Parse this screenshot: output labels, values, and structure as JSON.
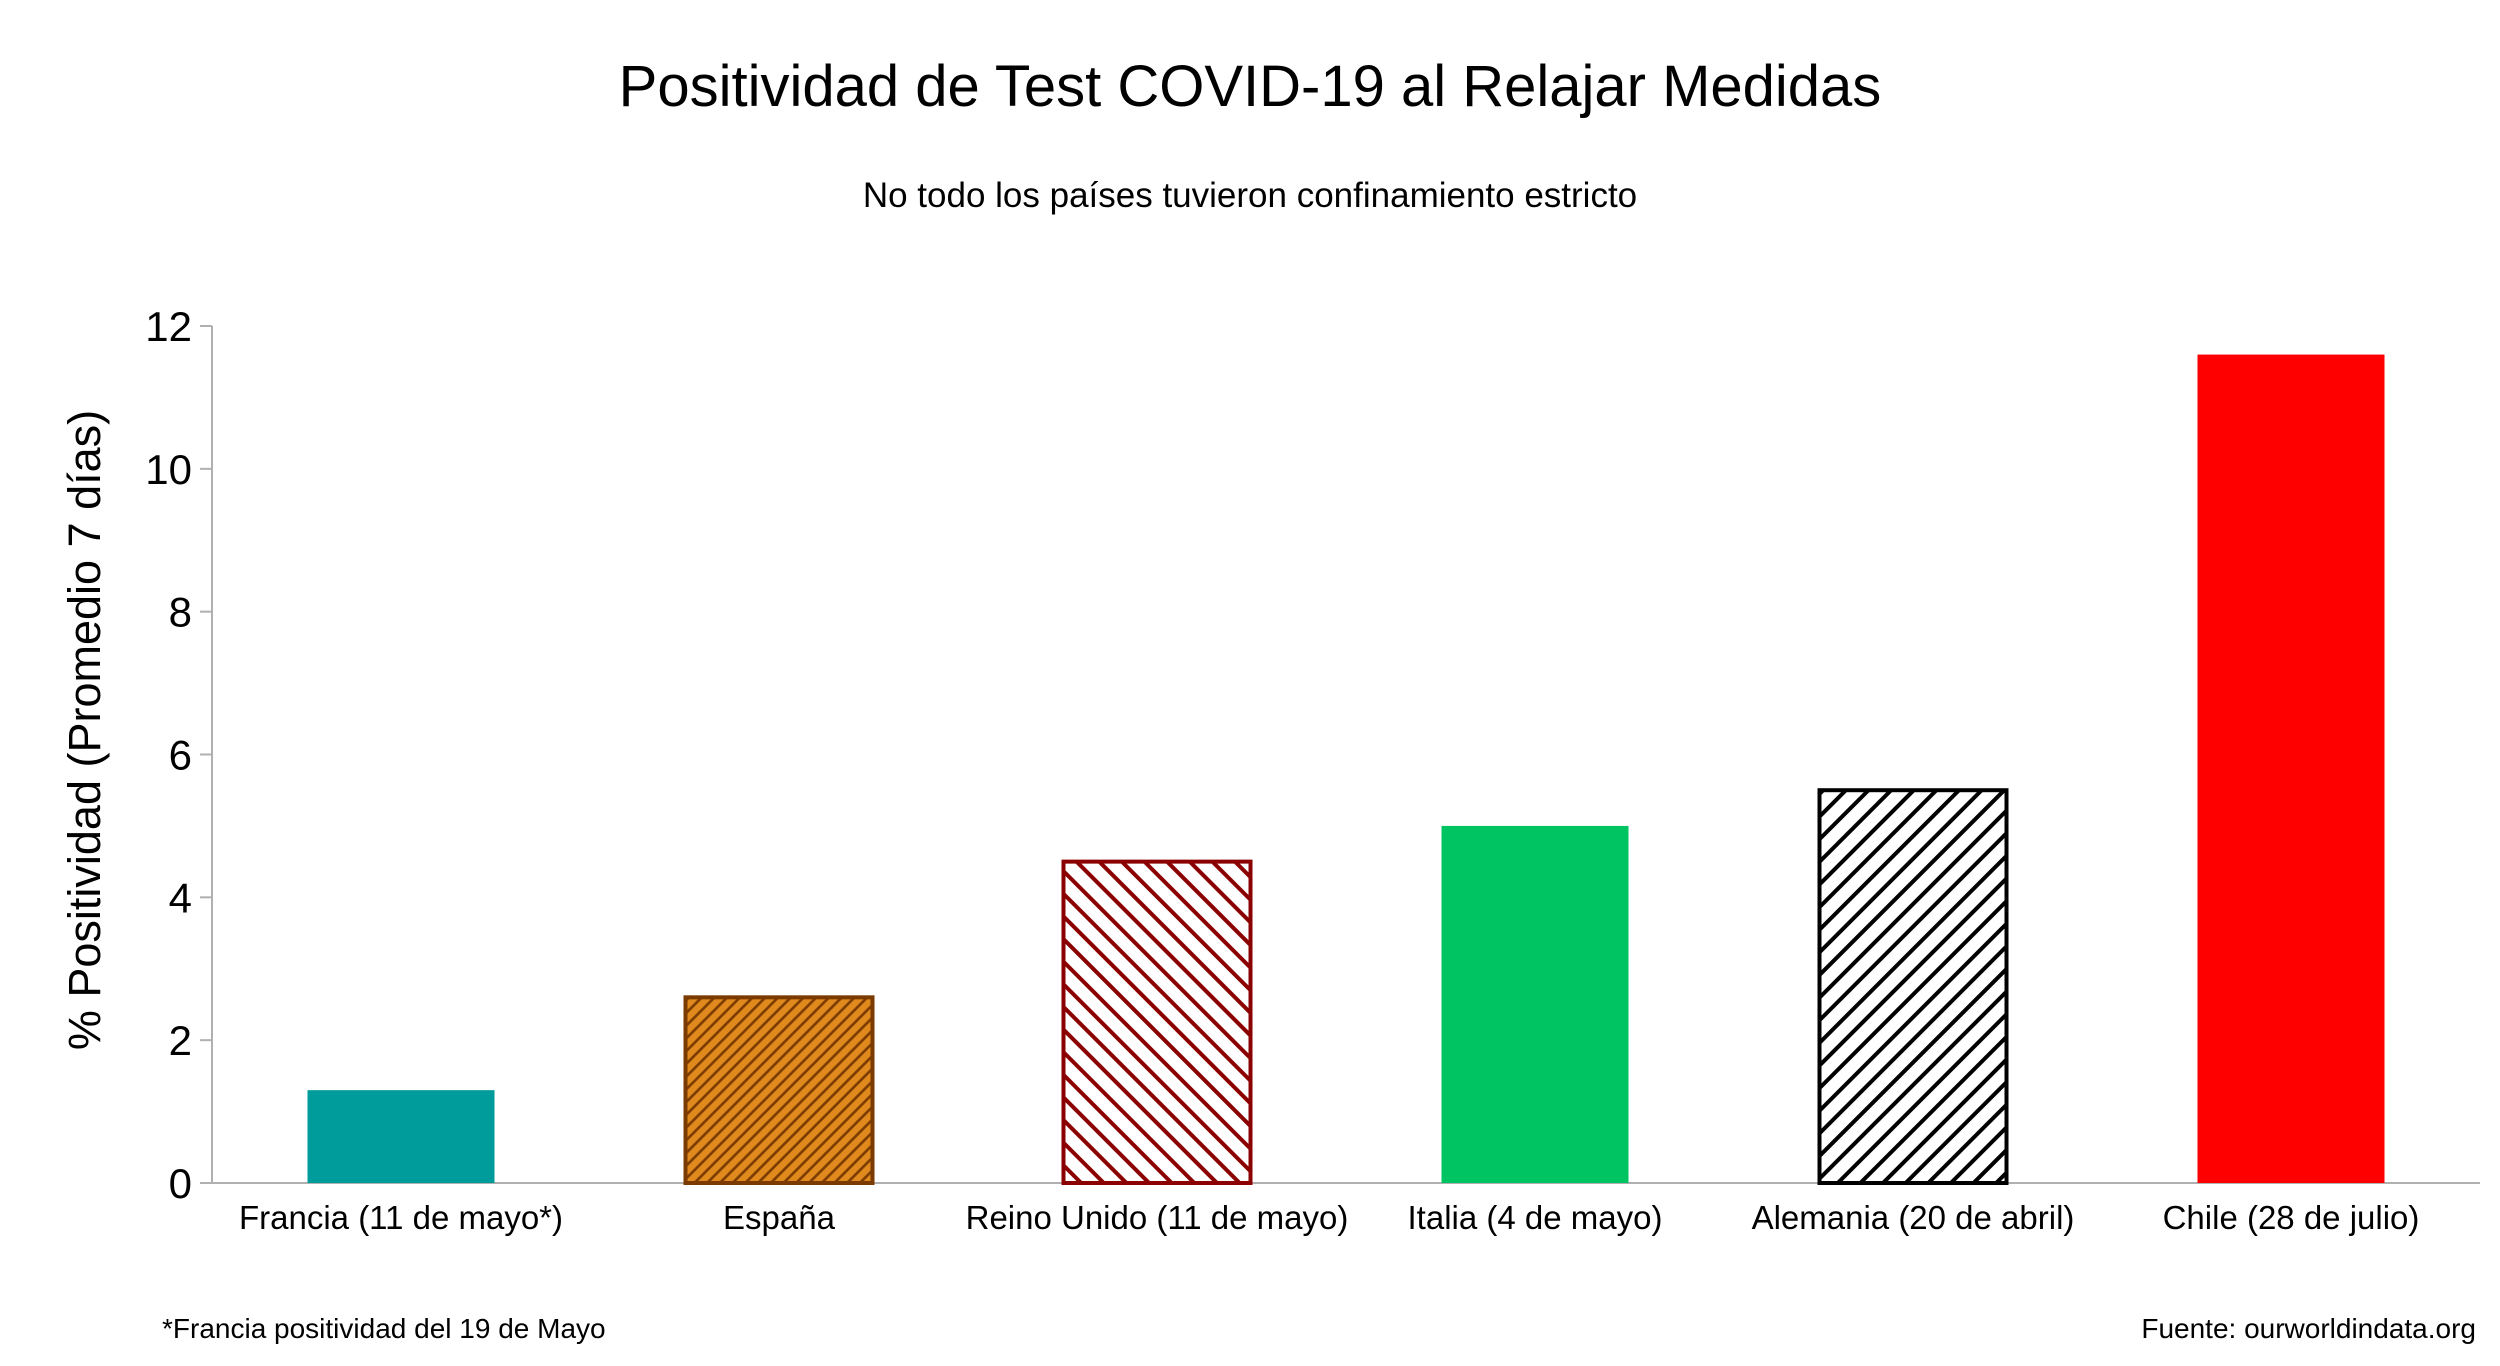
{
  "chart_data": {
    "type": "bar",
    "title": "Positividad de Test COVID-19 al Relajar Medidas",
    "subtitle": "No todo los países tuvieron confinamiento estricto",
    "ylabel": "% Positividad (Promedio 7 días)",
    "xlabel": "",
    "categories": [
      "Francia (11 de mayo*)",
      "España",
      "Reino Unido (11 de mayo)",
      "Italia (4 de mayo)",
      "Alemania (20 de abril)",
      "Chile (28 de julio)"
    ],
    "values": [
      1.3,
      2.6,
      4.5,
      5.0,
      5.5,
      11.6
    ],
    "ylim": [
      0,
      12
    ],
    "yticks": [
      0,
      2,
      4,
      6,
      8,
      10,
      12
    ],
    "grid": false,
    "bar_styles": [
      {
        "fill": "#009B9B",
        "pattern": "solid",
        "edge": "#009B9B"
      },
      {
        "fill": "#E08A1E",
        "pattern": "dense-diagonal",
        "stripe": "#7A3A00",
        "edge": "#7A3A00"
      },
      {
        "fill": "#ffffff",
        "pattern": "diagonal-back",
        "stripe": "#8B0000",
        "edge": "#8B0000"
      },
      {
        "fill": "#00C462",
        "pattern": "solid",
        "edge": "#00C462"
      },
      {
        "fill": "#ffffff",
        "pattern": "diagonal",
        "stripe": "#000000",
        "edge": "#000000"
      },
      {
        "fill": "#FF0000",
        "pattern": "solid",
        "edge": "#FF0000"
      }
    ]
  },
  "footnote": "*Francia positividad del 19 de Mayo",
  "source": "Fuente: ourworldindata.org"
}
